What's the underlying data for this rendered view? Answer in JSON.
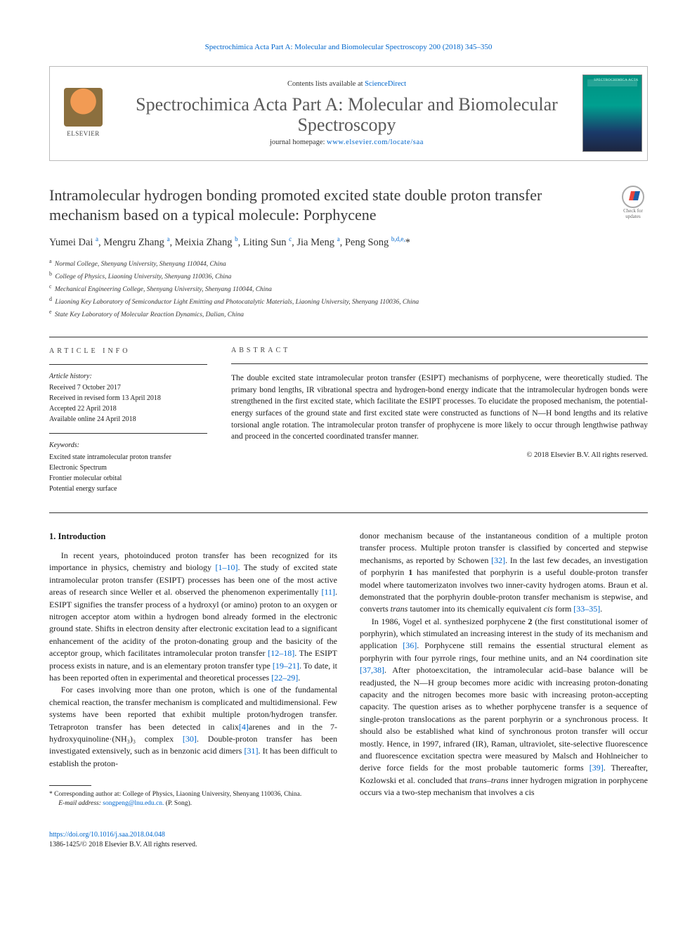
{
  "top_citation": {
    "journal": "Spectrochimica Acta Part A: Molecular and Biomolecular Spectroscopy",
    "vol_year_pages": "200 (2018) 345–350"
  },
  "header": {
    "contents_prefix": "Contents lists available at ",
    "contents_link": "ScienceDirect",
    "journal_name": "Spectrochimica Acta Part A: Molecular and Biomolecular Spectroscopy",
    "homepage_prefix": "journal homepage: ",
    "homepage_url": "www.elsevier.com/locate/saa",
    "elsevier_label": "ELSEVIER",
    "cover_label": "SPECTROCHIMICA ACTA"
  },
  "check_updates": {
    "line1": "Check for",
    "line2": "updates"
  },
  "title": "Intramolecular hydrogen bonding promoted excited state double proton transfer mechanism based on a typical molecule: Porphycene",
  "authors_html": "Yumei Dai <sup>a</sup>, Mengru Zhang <sup>a</sup>, Meixia Zhang <sup>b</sup>, Liting Sun <sup>c</sup>, Jia Meng <sup>a</sup>, Peng Song <sup>b,d,e,</sup>*",
  "affiliations": {
    "a": "Normal College, Shenyang University, Shenyang 110044, China",
    "b": "College of Physics, Liaoning University, Shenyang 110036, China",
    "c": "Mechanical Engineering College, Shenyang University, Shenyang 110044, China",
    "d": "Liaoning Key Laboratory of Semiconductor Light Emitting and Photocatalytic Materials, Liaoning University, Shenyang 110036, China",
    "e": "State Key Laboratory of Molecular Reaction Dynamics, Dalian, China"
  },
  "info_headings": {
    "article_info": "article info",
    "abstract": "abstract"
  },
  "history": {
    "label": "Article history:",
    "received": "Received 7 October 2017",
    "revised": "Received in revised form 13 April 2018",
    "accepted": "Accepted 22 April 2018",
    "online": "Available online 24 April 2018"
  },
  "keywords": {
    "label": "Keywords:",
    "k1": "Excited state intramolecular proton transfer",
    "k2": "Electronic Spectrum",
    "k3": "Frontier molecular orbital",
    "k4": "Potential energy surface"
  },
  "abstract": "The double excited state intramolecular proton transfer (ESIPT) mechanisms of porphycene, were theoretically studied. The primary bond lengths, IR vibrational spectra and hydrogen-bond energy indicate that the intramolecular hydrogen bonds were strengthened in the first excited state, which facilitate the ESIPT processes. To elucidate the proposed mechanism, the potential-energy surfaces of the ground state and first excited state were constructed as functions of N—H bond lengths and its relative torsional angle rotation. The intramolecular proton transfer of prophycene is more likely to occur through lengthwise pathway and proceed in the concerted coordinated transfer manner.",
  "copyright": "© 2018 Elsevier B.V. All rights reserved.",
  "section1_heading": "1. Introduction",
  "body": {
    "p1": "In recent years, photoinduced proton transfer has been recognized for its importance in physics, chemistry and biology [1–10]. The study of excited state intramolecular proton transfer (ESIPT) processes has been one of the most active areas of research since Weller et al. observed the phenomenon experimentally [11]. ESIPT signifies the transfer process of a hydroxyl (or amino) proton to an oxygen or nitrogen acceptor atom within a hydrogen bond already formed in the electronic ground state. Shifts in electron density after electronic excitation lead to a significant enhancement of the acidity of the proton-donating group and the basicity of the acceptor group, which facilitates intramolecular proton transfer [12–18]. The ESIPT process exists in nature, and is an elementary proton transfer type [19–21]. To date, it has been reported often in experimental and theoretical processes [22–29].",
    "p2": "For cases involving more than one proton, which is one of the fundamental chemical reaction, the transfer mechanism is complicated and multidimensional. Few systems have been reported that exhibit multiple proton/hydrogen transfer. Tetraproton transfer has been detected in calix[4]arenes and in the 7-hydroxyquinoline·(NH₃)₃ complex [30]. Double-proton transfer has been investigated extensively, such as in benzonic acid dimers [31]. It has been difficult to establish the proton-",
    "p3": "donor mechanism because of the instantaneous condition of a multiple proton transfer process. Multiple proton transfer is classified by concerted and stepwise mechanisms, as reported by Schowen [32]. In the last few decades, an investigation of porphyrin 1 has manifested that porphyrin is a useful double-proton transfer model where tautomerizaton involves two inner-cavity hydrogen atoms. Braun et al. demonstrated that the porphyrin double-proton transfer mechanism is stepwise, and converts trans tautomer into its chemically equivalent cis form [33–35].",
    "p4": "In 1986, Vogel et al. synthesized porphycene 2 (the first constitutional isomer of porphyrin), which stimulated an increasing interest in the study of its mechanism and application [36]. Porphycene still remains the essential structural element as porphyrin with four pyrrole rings, four methine units, and an N4 coordination site [37,38]. After photoexcitation, the intramolecular acid–base balance will be readjusted, the N—H group becomes more acidic with increasing proton-donating capacity and the nitrogen becomes more basic with increasing proton-accepting capacity. The question arises as to whether porphycene transfer is a sequence of single-proton translocations as the parent porphyrin or a synchronous process. It should also be established what kind of synchronous proton transfer will occur mostly. Hence, in 1997, infrared (IR), Raman, ultraviolet, site-selective fluorescence and fluorescence excitation spectra were measured by Malsch and Hohlneicher to derive force fields for the most probable tautomeric forms [39]. Thereafter, Kozlowski et al. concluded that trans–trans inner hydrogen migration in porphycene occurs via a two-step mechanism that involves a cis"
  },
  "footnote": {
    "corr_label": "* Corresponding author at: College of Physics, Liaoning University, Shenyang 110036, China.",
    "email_label": "E-mail address:",
    "email": "songpeng@lnu.edu.cn.",
    "email_who": "(P. Song)."
  },
  "footer": {
    "doi": "https://doi.org/10.1016/j.saa.2018.04.048",
    "issn_line": "1386-1425/© 2018 Elsevier B.V. All rights reserved."
  },
  "colors": {
    "link": "#0066cc",
    "text": "#1a1a1a",
    "heading_gray": "#5a5a5a",
    "border": "#333333"
  }
}
